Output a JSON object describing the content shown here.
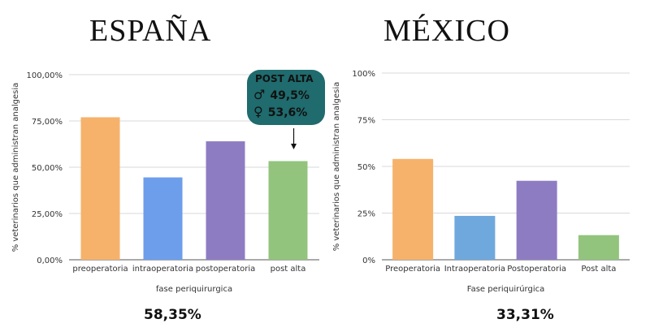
{
  "panels": {
    "spain": {
      "country": "ESPAÑA",
      "total": "58,35%"
    },
    "mexico": {
      "country": "MÉXICO",
      "total": "33,31%"
    }
  },
  "callout": {
    "title": "POST ALTA",
    "male_symbol": "♂",
    "male_value": "49,5%",
    "female_symbol": "♀",
    "female_value": "53,6%",
    "background": "#1f6b6e"
  },
  "chart_data": [
    {
      "type": "bar",
      "categories": [
        "preoperatoria",
        "intraoperatoria",
        "postoperatoria",
        "post alta"
      ],
      "values": [
        77,
        44.5,
        64,
        53.3
      ],
      "colors": [
        "#f6b26b",
        "#6d9eeb",
        "#8e7cc3",
        "#93c47d"
      ],
      "xlabel": "fase periquirurgica",
      "ylabel": "% veterinarios que administran analgesia",
      "ylim": [
        0,
        100
      ],
      "yticks": [
        0,
        25,
        50,
        75,
        100
      ],
      "ytick_labels": [
        "0,00%",
        "25,00%",
        "50,00%",
        "75,00%",
        "100,00%"
      ],
      "grid": true
    },
    {
      "type": "bar",
      "categories": [
        "Preoperatoria",
        "Intraoperatoria",
        "Postoperatoria",
        "Post alta"
      ],
      "values": [
        54,
        23.5,
        42.3,
        13.2
      ],
      "colors": [
        "#f6b26b",
        "#6fa8dc",
        "#8e7cc3",
        "#93c47d"
      ],
      "xlabel": "Fase periquirúrgica",
      "ylabel": "% veterinarios que administran analgesia",
      "ylim": [
        0,
        100
      ],
      "yticks": [
        0,
        25,
        50,
        75,
        100
      ],
      "ytick_labels": [
        "0%",
        "25%",
        "50%",
        "75%",
        "100%"
      ],
      "grid": true
    }
  ]
}
